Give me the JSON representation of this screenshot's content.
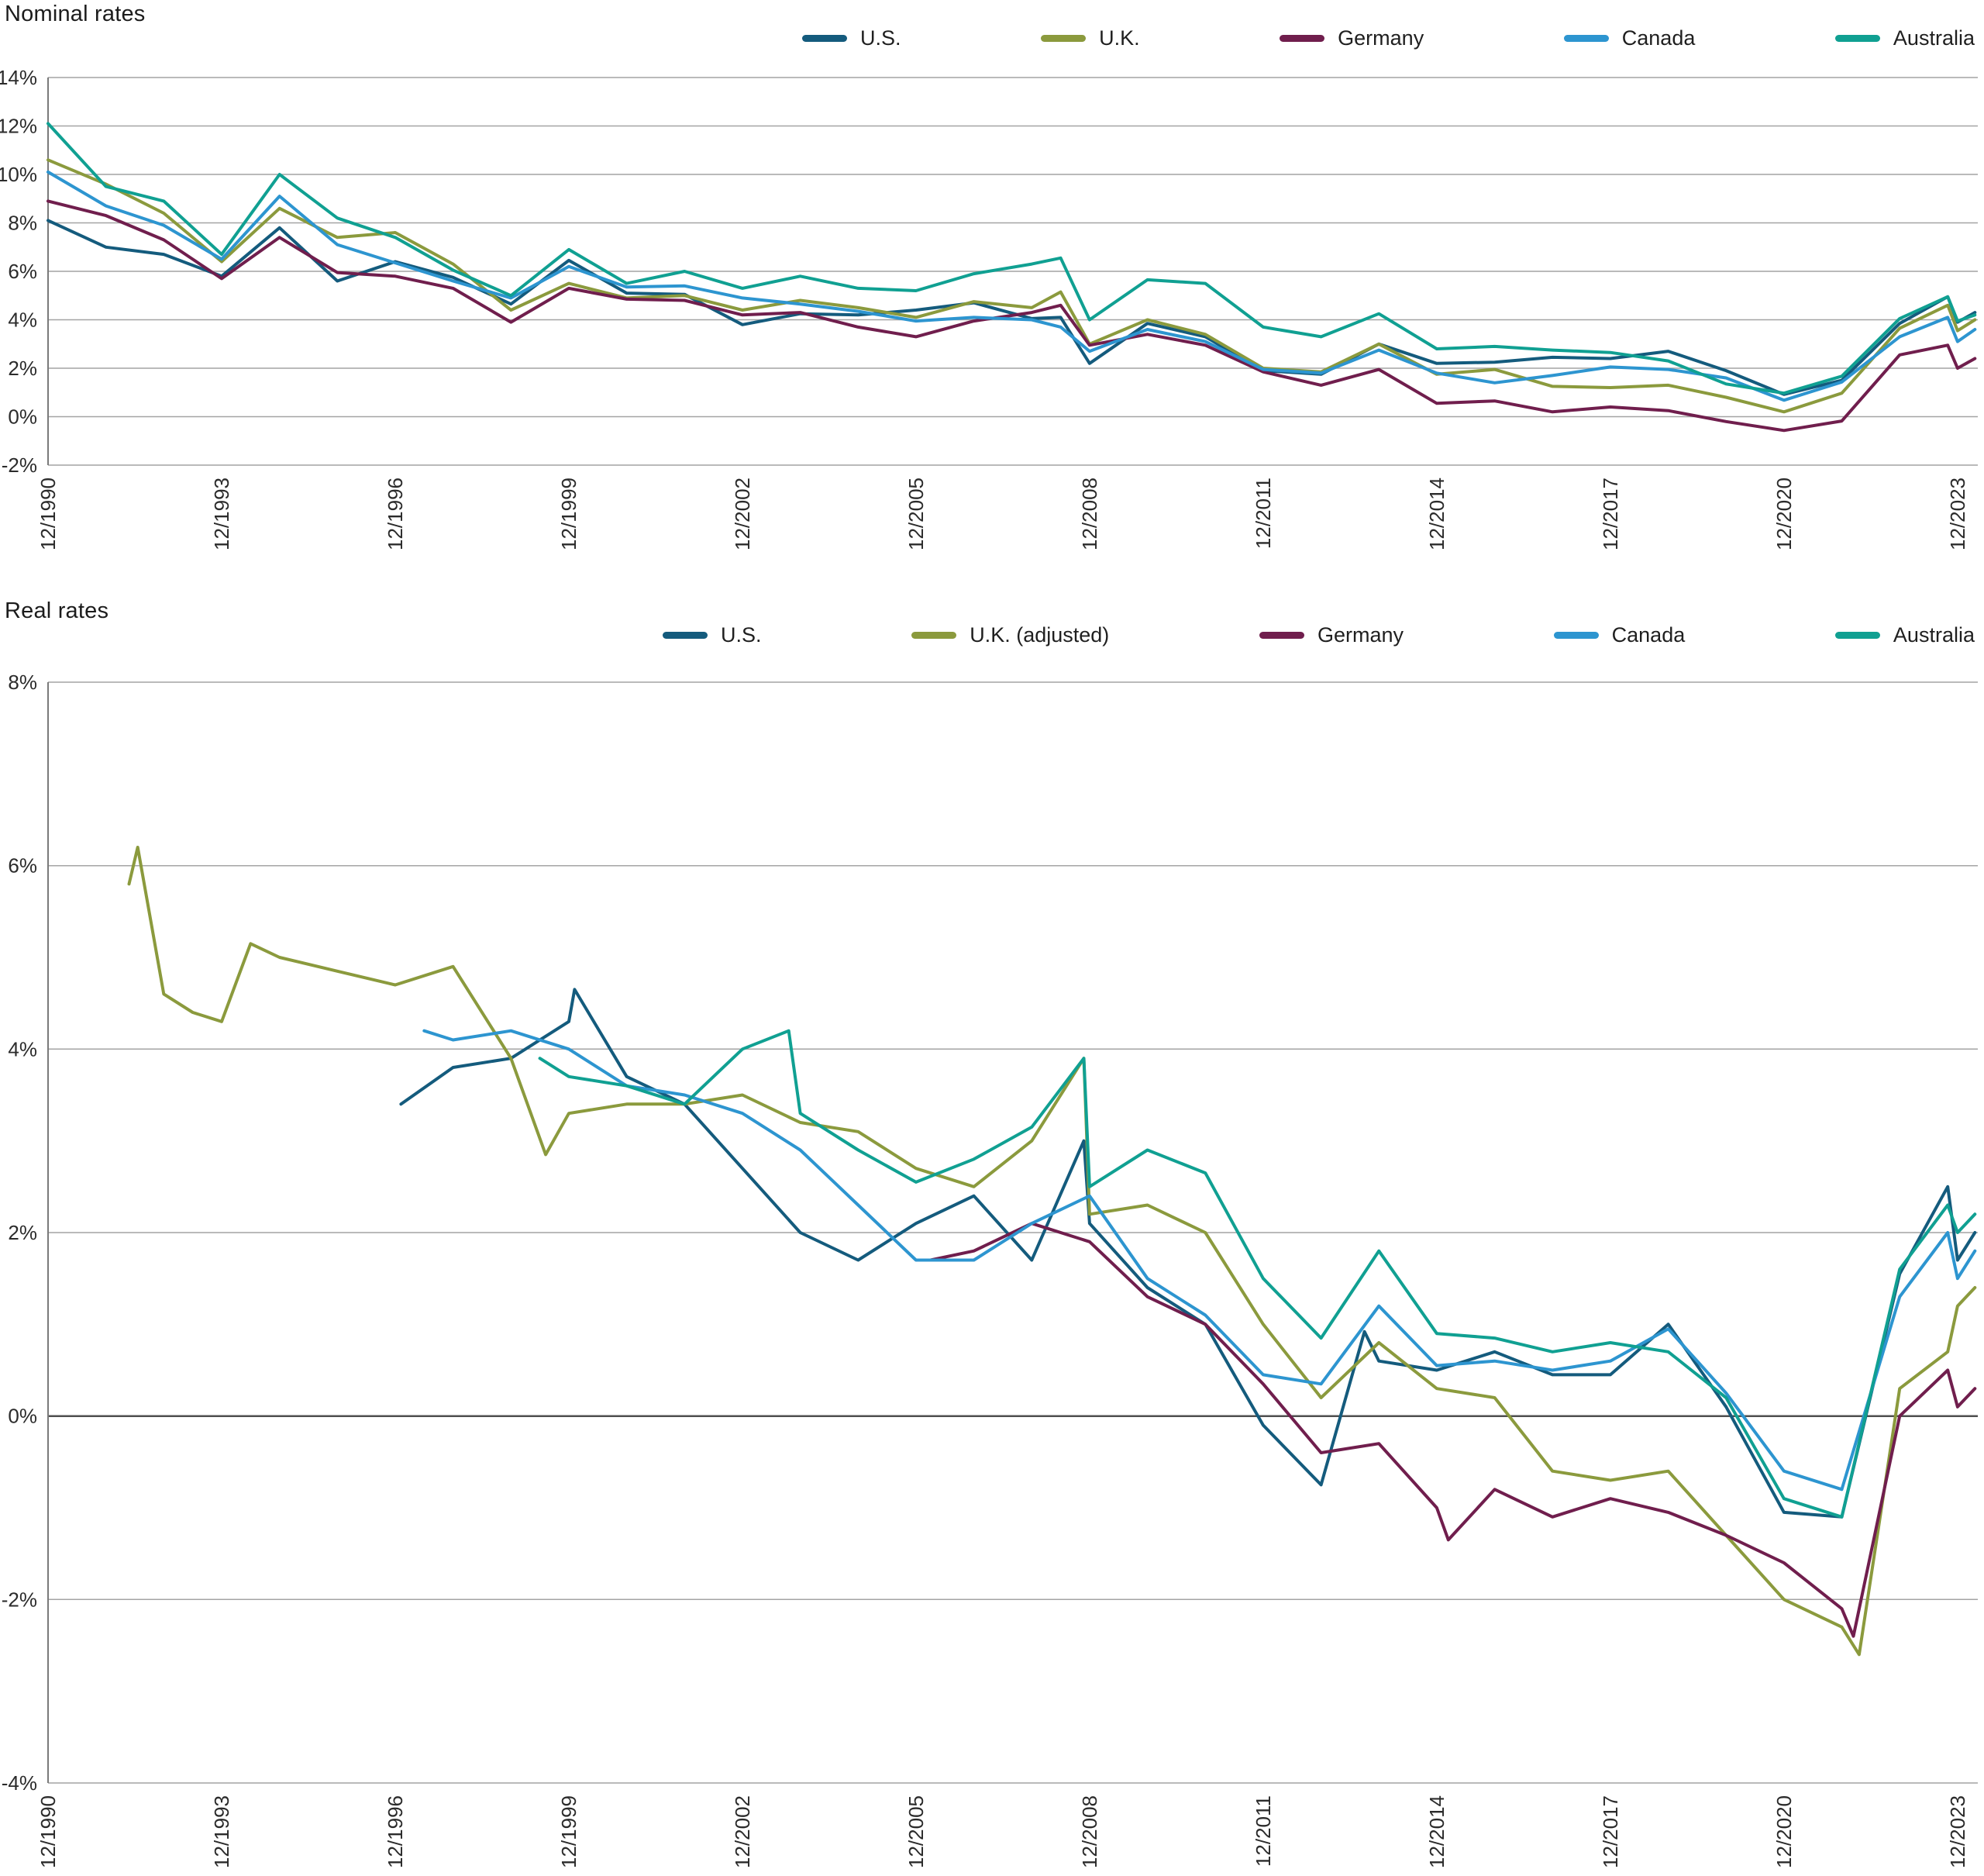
{
  "chart_data": [
    {
      "id": "nominal",
      "type": "line",
      "title": "Nominal rates",
      "legend_position": "top",
      "grid": true,
      "y_axis": {
        "min": -2,
        "max": 14,
        "step": 2,
        "suffix": "%",
        "zero_emphasis": false
      },
      "x_axis": {
        "min": 1990,
        "max": 2023.35,
        "ticks": [
          {
            "value": 1990,
            "label": "12/1990"
          },
          {
            "value": 1993,
            "label": "12/1993"
          },
          {
            "value": 1996,
            "label": "12/1996"
          },
          {
            "value": 1999,
            "label": "12/1999"
          },
          {
            "value": 2002,
            "label": "12/2002"
          },
          {
            "value": 2005,
            "label": "12/2005"
          },
          {
            "value": 2008,
            "label": "12/2008"
          },
          {
            "value": 2011,
            "label": "12/2011"
          },
          {
            "value": 2014,
            "label": "12/2014"
          },
          {
            "value": 2017,
            "label": "12/2017"
          },
          {
            "value": 2020,
            "label": "12/2020"
          },
          {
            "value": 2023,
            "label": "12/2023"
          }
        ]
      },
      "series": [
        {
          "id": "us",
          "name": "U.S.",
          "color": "#145b7d",
          "x": [
            1990,
            1991,
            1992,
            1993,
            1994,
            1995,
            1996,
            1997,
            1998,
            1999,
            2000,
            2001,
            2002,
            2003,
            2004,
            2005,
            2006,
            2007,
            2007.5,
            2008,
            2009,
            2010,
            2011,
            2012,
            2013,
            2014,
            2015,
            2016,
            2017,
            2018,
            2019,
            2020,
            2021,
            2022,
            2022.83,
            2023,
            2023.3
          ],
          "values": [
            8.1,
            7.0,
            6.7,
            5.8,
            7.8,
            5.6,
            6.4,
            5.75,
            4.65,
            6.45,
            5.1,
            5.05,
            3.8,
            4.25,
            4.2,
            4.4,
            4.7,
            4.05,
            4.1,
            2.2,
            3.85,
            3.3,
            1.9,
            1.75,
            3.0,
            2.2,
            2.25,
            2.45,
            2.4,
            2.7,
            1.9,
            0.92,
            1.5,
            3.85,
            4.95,
            3.9,
            4.3
          ]
        },
        {
          "id": "uk",
          "name": "U.K.",
          "color": "#8b9a3d",
          "x": [
            1990,
            1991,
            1992,
            1993,
            1994,
            1995,
            1996,
            1997,
            1998,
            1999,
            2000,
            2001,
            2002,
            2003,
            2004,
            2005,
            2006,
            2007,
            2007.5,
            2008,
            2009,
            2010,
            2011,
            2012,
            2013,
            2014,
            2015,
            2016,
            2017,
            2018,
            2019,
            2020,
            2021,
            2022,
            2022.83,
            2023,
            2023.3
          ],
          "values": [
            10.6,
            9.6,
            8.4,
            6.4,
            8.6,
            7.4,
            7.6,
            6.3,
            4.4,
            5.5,
            4.9,
            5.0,
            4.4,
            4.8,
            4.5,
            4.1,
            4.75,
            4.5,
            5.15,
            3.0,
            4.0,
            3.4,
            2.0,
            1.85,
            3.0,
            1.75,
            1.95,
            1.25,
            1.2,
            1.3,
            0.8,
            0.2,
            0.97,
            3.65,
            4.6,
            3.55,
            4.0
          ]
        },
        {
          "id": "germany",
          "name": "Germany",
          "color": "#701e4d",
          "x": [
            1990,
            1991,
            1992,
            1993,
            1994,
            1995,
            1996,
            1997,
            1998,
            1999,
            2000,
            2001,
            2002,
            2003,
            2004,
            2005,
            2006,
            2007,
            2007.5,
            2008,
            2009,
            2010,
            2011,
            2012,
            2013,
            2014,
            2015,
            2016,
            2017,
            2018,
            2019,
            2020,
            2021,
            2022,
            2022.83,
            2023,
            2023.3
          ],
          "values": [
            8.9,
            8.3,
            7.3,
            5.7,
            7.4,
            5.95,
            5.8,
            5.3,
            3.9,
            5.3,
            4.85,
            4.8,
            4.2,
            4.3,
            3.7,
            3.3,
            3.95,
            4.3,
            4.6,
            2.95,
            3.4,
            2.95,
            1.85,
            1.3,
            1.95,
            0.55,
            0.65,
            0.2,
            0.4,
            0.25,
            -0.2,
            -0.57,
            -0.18,
            2.55,
            2.95,
            2.0,
            2.4
          ]
        },
        {
          "id": "canada",
          "name": "Canada",
          "color": "#2d95d0",
          "x": [
            1990,
            1991,
            1992,
            1993,
            1994,
            1995,
            1996,
            1997,
            1998,
            1999,
            2000,
            2001,
            2002,
            2003,
            2004,
            2005,
            2006,
            2007,
            2007.5,
            2008,
            2009,
            2010,
            2011,
            2012,
            2013,
            2014,
            2015,
            2016,
            2017,
            2018,
            2019,
            2020,
            2021,
            2022,
            2022.83,
            2023,
            2023.3
          ],
          "values": [
            10.1,
            8.7,
            7.9,
            6.5,
            9.1,
            7.1,
            6.35,
            5.6,
            4.9,
            6.2,
            5.35,
            5.4,
            4.9,
            4.65,
            4.35,
            3.95,
            4.1,
            4.0,
            3.7,
            2.7,
            3.6,
            3.1,
            1.95,
            1.8,
            2.75,
            1.8,
            1.4,
            1.7,
            2.05,
            1.95,
            1.6,
            0.68,
            1.43,
            3.3,
            4.1,
            3.1,
            3.6
          ]
        },
        {
          "id": "australia",
          "name": "Australia",
          "color": "#10a092",
          "x": [
            1990,
            1991,
            1992,
            1993,
            1994,
            1995,
            1996,
            1997,
            1998,
            1999,
            2000,
            2001,
            2002,
            2003,
            2004,
            2005,
            2006,
            2007,
            2007.5,
            2008,
            2009,
            2010,
            2011,
            2012,
            2013,
            2014,
            2015,
            2016,
            2017,
            2018,
            2019,
            2020,
            2021,
            2022,
            2022.83,
            2023,
            2023.3
          ],
          "values": [
            12.1,
            9.5,
            8.9,
            6.7,
            10.0,
            8.2,
            7.4,
            6.05,
            5.0,
            6.9,
            5.5,
            6.0,
            5.3,
            5.8,
            5.3,
            5.2,
            5.9,
            6.3,
            6.55,
            4.0,
            5.65,
            5.5,
            3.7,
            3.3,
            4.25,
            2.8,
            2.9,
            2.75,
            2.65,
            2.3,
            1.35,
            0.97,
            1.67,
            4.05,
            4.95,
            3.95,
            4.2
          ]
        }
      ]
    },
    {
      "id": "real",
      "type": "line",
      "title": "Real rates",
      "legend_position": "top",
      "grid": true,
      "y_axis": {
        "min": -4,
        "max": 8,
        "step": 2,
        "suffix": "%",
        "zero_emphasis": true
      },
      "x_axis": {
        "min": 1990,
        "max": 2023.35,
        "ticks": [
          {
            "value": 1990,
            "label": "12/1990"
          },
          {
            "value": 1993,
            "label": "12/1993"
          },
          {
            "value": 1996,
            "label": "12/1996"
          },
          {
            "value": 1999,
            "label": "12/1999"
          },
          {
            "value": 2002,
            "label": "12/2002"
          },
          {
            "value": 2005,
            "label": "12/2005"
          },
          {
            "value": 2008,
            "label": "12/2008"
          },
          {
            "value": 2011,
            "label": "12/2011"
          },
          {
            "value": 2014,
            "label": "12/2014"
          },
          {
            "value": 2017,
            "label": "12/2017"
          },
          {
            "value": 2020,
            "label": "12/2020"
          },
          {
            "value": 2023,
            "label": "12/2023"
          }
        ]
      },
      "series": [
        {
          "id": "us",
          "name": "U.S.",
          "color": "#145b7d",
          "x": [
            1996.1,
            1997,
            1998,
            1999,
            1999.1,
            2000,
            2001,
            2002,
            2003,
            2004,
            2005,
            2006,
            2007,
            2007.9,
            2008,
            2009,
            2010,
            2011,
            2012,
            2012.75,
            2013,
            2014,
            2015,
            2016,
            2017,
            2018,
            2019,
            2020,
            2021,
            2022,
            2022.83,
            2023,
            2023.3
          ],
          "values": [
            3.4,
            3.8,
            3.9,
            4.3,
            4.65,
            3.7,
            3.4,
            2.7,
            2.0,
            1.7,
            2.1,
            2.4,
            1.7,
            3.0,
            2.1,
            1.4,
            1.0,
            -0.1,
            -0.75,
            0.92,
            0.6,
            0.5,
            0.7,
            0.45,
            0.45,
            1.0,
            0.1,
            -1.05,
            -1.1,
            1.55,
            2.5,
            1.7,
            2.0
          ]
        },
        {
          "id": "uk",
          "name": "U.K. (adjusted)",
          "color": "#8b9a3d",
          "x": [
            1991.4,
            1991.55,
            1992,
            1992.5,
            1993,
            1993.5,
            1994,
            1995,
            1996,
            1997,
            1998,
            1998.6,
            1999,
            2000,
            2001,
            2002,
            2003,
            2004,
            2005,
            2006,
            2007,
            2007.9,
            2008,
            2009,
            2010,
            2011,
            2012,
            2013,
            2014,
            2015,
            2016,
            2017,
            2018,
            2019,
            2020,
            2021,
            2021.3,
            2022,
            2022.83,
            2023,
            2023.3
          ],
          "values": [
            5.8,
            6.2,
            4.6,
            4.4,
            4.3,
            5.15,
            5.0,
            4.85,
            4.7,
            4.9,
            3.9,
            2.85,
            3.3,
            3.4,
            3.4,
            3.5,
            3.2,
            3.1,
            2.7,
            2.5,
            3.0,
            3.9,
            2.2,
            2.3,
            2.0,
            1.0,
            0.2,
            0.8,
            0.3,
            0.2,
            -0.6,
            -0.7,
            -0.6,
            -1.3,
            -2.0,
            -2.3,
            -2.6,
            0.3,
            0.7,
            1.2,
            1.4
          ]
        },
        {
          "id": "germany",
          "name": "Germany",
          "color": "#701e4d",
          "x": [
            2005.25,
            2006,
            2007,
            2008,
            2009,
            2010,
            2011,
            2012,
            2013,
            2014,
            2014.2,
            2015,
            2016,
            2017,
            2018,
            2019,
            2020,
            2021,
            2021.2,
            2022,
            2022.83,
            2023,
            2023.3
          ],
          "values": [
            1.7,
            1.8,
            2.1,
            1.9,
            1.3,
            1.0,
            0.35,
            -0.4,
            -0.3,
            -1.0,
            -1.35,
            -0.8,
            -1.1,
            -0.9,
            -1.05,
            -1.3,
            -1.6,
            -2.1,
            -2.4,
            0.0,
            0.5,
            0.1,
            0.3
          ]
        },
        {
          "id": "canada",
          "name": "Canada",
          "color": "#2d95d0",
          "x": [
            1996.5,
            1997,
            1998,
            1999,
            2000,
            2001,
            2002,
            2003,
            2004,
            2005,
            2006,
            2007,
            2008,
            2009,
            2010,
            2011,
            2012,
            2013,
            2014,
            2015,
            2016,
            2017,
            2018,
            2019,
            2020,
            2021,
            2022,
            2022.83,
            2023,
            2023.3
          ],
          "values": [
            4.2,
            4.1,
            4.2,
            4.0,
            3.6,
            3.5,
            3.3,
            2.9,
            2.3,
            1.7,
            1.7,
            2.1,
            2.4,
            1.5,
            1.1,
            0.45,
            0.35,
            1.2,
            0.55,
            0.6,
            0.5,
            0.6,
            0.95,
            0.25,
            -0.6,
            -0.8,
            1.3,
            2.0,
            1.5,
            1.8
          ]
        },
        {
          "id": "australia",
          "name": "Australia",
          "color": "#10a092",
          "x": [
            1998.5,
            1999,
            2000,
            2001,
            2002,
            2002.8,
            2003,
            2004,
            2005,
            2006,
            2007,
            2007.9,
            2008,
            2009,
            2010,
            2011,
            2012,
            2013,
            2014,
            2015,
            2016,
            2017,
            2018,
            2019,
            2020,
            2021,
            2022,
            2022.83,
            2023,
            2023.3
          ],
          "values": [
            3.9,
            3.7,
            3.6,
            3.4,
            4.0,
            4.2,
            3.3,
            2.9,
            2.55,
            2.8,
            3.15,
            3.9,
            2.5,
            2.9,
            2.65,
            1.5,
            0.85,
            1.8,
            0.9,
            0.85,
            0.7,
            0.8,
            0.7,
            0.2,
            -0.9,
            -1.1,
            1.6,
            2.3,
            2.0,
            2.2
          ]
        }
      ]
    }
  ]
}
